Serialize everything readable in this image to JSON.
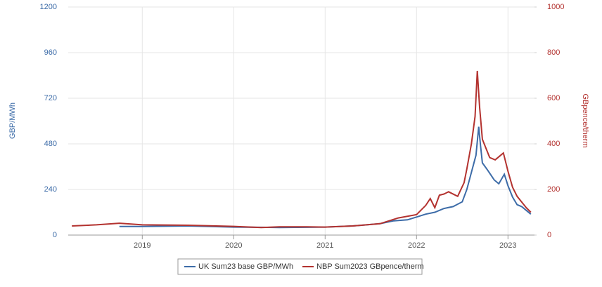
{
  "chart_data": {
    "type": "line",
    "y_label": "GBP/MWh",
    "y2_label": "GBpence/therm",
    "xlim": [
      2018.19,
      2023.29
    ],
    "xticks": [
      2019,
      2020,
      2021,
      2022,
      2023
    ],
    "ylim": [
      0,
      1200
    ],
    "yticks": [
      0,
      240,
      480,
      720,
      960,
      1200
    ],
    "y2lim": [
      0,
      1000
    ],
    "y2ticks": [
      0,
      200,
      400,
      600,
      800,
      1000
    ],
    "grid": true,
    "legend": "bottom",
    "series": [
      {
        "name": "UK Sum23 base GBP/MWh",
        "color": "#3d6ca8",
        "axis": "y",
        "x": [
          2018.75,
          2019,
          2019.5,
          2020,
          2020.5,
          2021,
          2021.3,
          2021.6,
          2021.75,
          2021.9,
          2022,
          2022.1,
          2022.2,
          2022.3,
          2022.4,
          2022.5,
          2022.55,
          2022.6,
          2022.65,
          2022.68,
          2022.7,
          2022.72,
          2022.78,
          2022.85,
          2022.9,
          2022.96,
          2023,
          2023.05,
          2023.1,
          2023.15,
          2023.2,
          2023.25
        ],
        "values": [
          45,
          45,
          48,
          42,
          40,
          42,
          48,
          60,
          75,
          80,
          95,
          110,
          120,
          140,
          150,
          175,
          240,
          330,
          420,
          570,
          470,
          380,
          340,
          290,
          270,
          320,
          260,
          200,
          160,
          150,
          130,
          110
        ]
      },
      {
        "name": "NBP Sum2023 GBpence/therm",
        "color": "#b3322f",
        "axis": "y2",
        "x": [
          2018.23,
          2018.5,
          2018.75,
          2019,
          2019.5,
          2020,
          2020.3,
          2020.5,
          2020.8,
          2021,
          2021.3,
          2021.6,
          2021.8,
          2022,
          2022.1,
          2022.15,
          2022.2,
          2022.25,
          2022.3,
          2022.35,
          2022.45,
          2022.52,
          2022.55,
          2022.6,
          2022.64,
          2022.665,
          2022.69,
          2022.72,
          2022.76,
          2022.8,
          2022.86,
          2022.92,
          2022.95,
          2023,
          2023.05,
          2023.1,
          2023.15,
          2023.2,
          2023.25
        ],
        "values": [
          40,
          45,
          52,
          45,
          43,
          38,
          33,
          36,
          36,
          35,
          40,
          50,
          75,
          90,
          130,
          160,
          120,
          175,
          180,
          190,
          170,
          230,
          290,
          400,
          520,
          720,
          560,
          420,
          380,
          340,
          330,
          350,
          360,
          280,
          210,
          170,
          145,
          120,
          100
        ]
      }
    ]
  }
}
